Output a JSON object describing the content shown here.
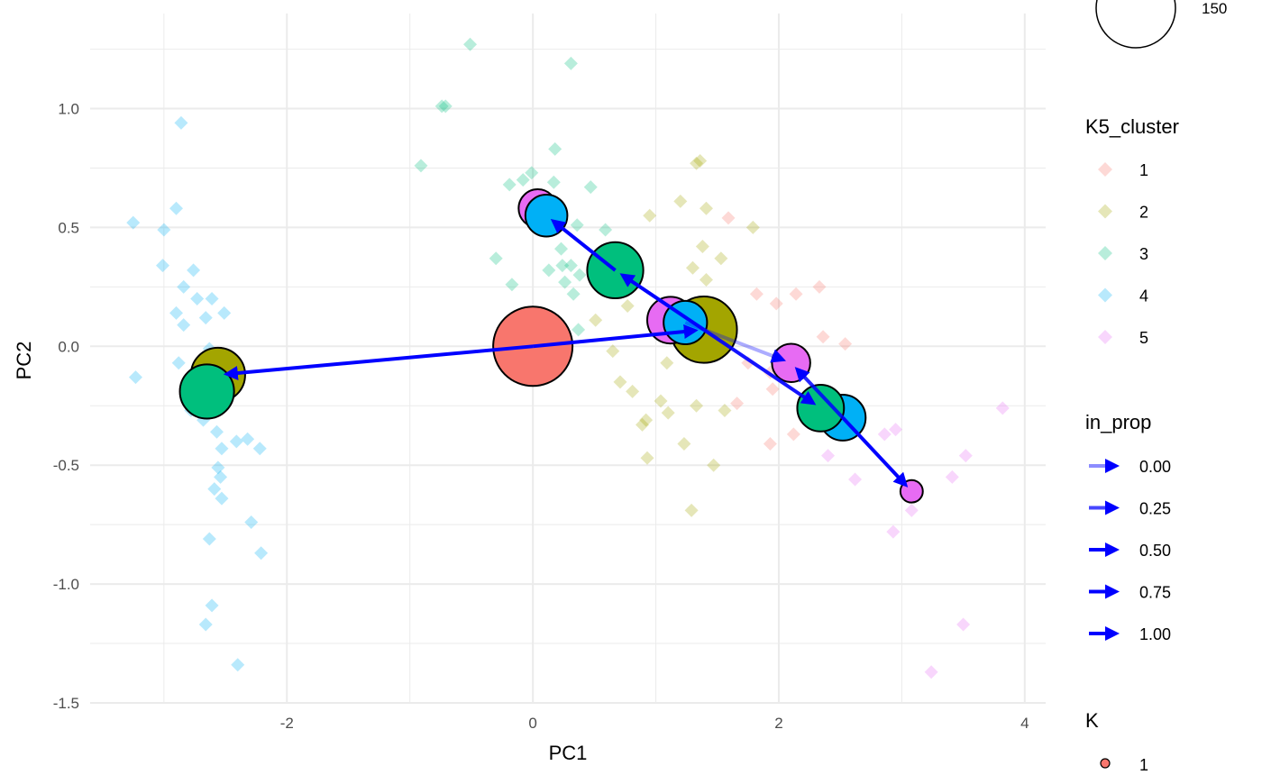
{
  "chart_data": {
    "type": "scatter",
    "xlabel": "PC1",
    "ylabel": "PC2",
    "xlim": [
      -3.6,
      4.17
    ],
    "ylim": [
      -1.5,
      1.4
    ],
    "x_ticks": [
      -2,
      0,
      2,
      4
    ],
    "y_ticks": [
      -1.5,
      -1.0,
      -0.5,
      0.0,
      0.5,
      1.0
    ],
    "x_tick_labels": [
      "-2",
      "0",
      "2",
      "4"
    ],
    "y_tick_labels": [
      "-1.5",
      "-1.0",
      "-0.5",
      "0.0",
      "0.5",
      "1.0"
    ],
    "grid": true,
    "legend_position": "right",
    "cluster_colors": {
      "1": "#F8766D",
      "2": "#A3A500",
      "3": "#00BF7D",
      "4": "#00B0F6",
      "5": "#E76BF3"
    },
    "arrow_color": "#0000FF",
    "points": [
      {
        "cluster": "4",
        "x": [
          -2.86,
          -3.25,
          -2.9,
          -3.0,
          -3.01,
          -2.76,
          -2.84,
          -2.73,
          -2.61,
          -2.9,
          -2.84,
          -2.66,
          -2.51,
          -2.88,
          -3.23,
          -2.63,
          -2.78,
          -2.68,
          -2.57,
          -2.53,
          -2.41,
          -2.32,
          -2.22,
          -2.56,
          -2.54,
          -2.59,
          -2.53,
          -2.29,
          -2.63,
          -2.21,
          -2.61,
          -2.66,
          -2.4
        ],
        "y": [
          0.94,
          0.52,
          0.58,
          0.49,
          0.34,
          0.32,
          0.25,
          0.2,
          0.2,
          0.14,
          0.09,
          0.12,
          0.14,
          -0.07,
          -0.13,
          -0.01,
          -0.27,
          -0.31,
          -0.36,
          -0.43,
          -0.4,
          -0.39,
          -0.43,
          -0.51,
          -0.55,
          -0.6,
          -0.64,
          -0.74,
          -0.81,
          -0.87,
          -1.09,
          -1.17,
          -1.34
        ]
      },
      {
        "cluster": "3",
        "x": [
          -0.51,
          0.31,
          -0.74,
          -0.71,
          -0.91,
          0.18,
          -0.01,
          -0.08,
          -0.19,
          0.17,
          0.47,
          0.36,
          0.59,
          0.23,
          0.24,
          0.31,
          0.13,
          0.26,
          0.33,
          -0.3,
          -0.17,
          0.37,
          0.38
        ],
        "y": [
          1.27,
          1.19,
          1.01,
          1.01,
          0.76,
          0.83,
          0.73,
          0.7,
          0.68,
          0.69,
          0.67,
          0.51,
          0.49,
          0.41,
          0.34,
          0.34,
          0.32,
          0.27,
          0.22,
          0.37,
          0.26,
          0.07,
          0.3
        ]
      },
      {
        "cluster": "2",
        "x": [
          1.33,
          1.36,
          1.2,
          0.95,
          1.41,
          1.79,
          1.53,
          1.38,
          1.3,
          1.41,
          0.51,
          0.77,
          0.65,
          1.09,
          0.71,
          0.81,
          1.04,
          1.1,
          1.33,
          1.56,
          0.92,
          0.89,
          1.23,
          0.93,
          1.47,
          1.29
        ],
        "y": [
          0.77,
          0.78,
          0.61,
          0.55,
          0.58,
          0.5,
          0.37,
          0.42,
          0.33,
          0.28,
          0.11,
          0.17,
          -0.02,
          -0.07,
          -0.15,
          -0.19,
          -0.23,
          -0.28,
          -0.25,
          -0.27,
          -0.31,
          -0.33,
          -0.41,
          -0.47,
          -0.5,
          -0.69
        ]
      },
      {
        "cluster": "1",
        "x": [
          1.59,
          1.82,
          1.98,
          2.14,
          2.33,
          2.36,
          2.54,
          1.66,
          1.93,
          1.95,
          1.93,
          2.12,
          1.75
        ],
        "y": [
          0.54,
          0.22,
          0.18,
          0.22,
          0.25,
          0.04,
          0.01,
          -0.24,
          -0.11,
          -0.18,
          -0.41,
          -0.37,
          -0.07
        ]
      },
      {
        "cluster": "5",
        "x": [
          3.82,
          2.86,
          2.95,
          2.4,
          2.62,
          3.08,
          3.52,
          3.41,
          2.93,
          3.5,
          3.24
        ],
        "y": [
          -0.26,
          -0.37,
          -0.35,
          -0.46,
          -0.56,
          -0.69,
          -0.46,
          -0.55,
          -0.78,
          -1.17,
          -1.37
        ]
      }
    ],
    "nodes": [
      {
        "K": 1,
        "cluster": "1",
        "x": 0.0,
        "y": 0.0,
        "size": 150
      },
      {
        "K": 2,
        "cluster": "2",
        "x": -2.56,
        "y": -0.12,
        "size": 70
      },
      {
        "K": 3,
        "cluster": "3",
        "x": -2.65,
        "y": -0.19,
        "size": 70
      },
      {
        "K": 2,
        "cluster": "2",
        "x": 1.39,
        "y": 0.07,
        "size": 105
      },
      {
        "K": 5,
        "cluster": "5",
        "x": 1.12,
        "y": 0.11,
        "size": 52
      },
      {
        "K": 4,
        "cluster": "4",
        "x": 1.24,
        "y": 0.1,
        "size": 45
      },
      {
        "K": 3,
        "cluster": "3",
        "x": 0.67,
        "y": 0.32,
        "size": 75
      },
      {
        "K": 5,
        "cluster": "5",
        "x": 0.04,
        "y": 0.58,
        "size": 35
      },
      {
        "K": 4,
        "cluster": "4",
        "x": 0.11,
        "y": 0.55,
        "size": 42
      },
      {
        "K": 5,
        "cluster": "5",
        "x": 2.1,
        "y": -0.07,
        "size": 35
      },
      {
        "K": 4,
        "cluster": "4",
        "x": 2.52,
        "y": -0.3,
        "size": 50
      },
      {
        "K": 3,
        "cluster": "3",
        "x": 2.34,
        "y": -0.26,
        "size": 52
      },
      {
        "K": 5,
        "cluster": "5",
        "x": 3.08,
        "y": -0.61,
        "size": 12
      }
    ],
    "edges": [
      {
        "from": [
          0.0,
          0.0
        ],
        "to": [
          -2.56,
          -0.12
        ],
        "in_prop": 1.0
      },
      {
        "from": [
          0.0,
          0.0
        ],
        "to": [
          1.39,
          0.07
        ],
        "in_prop": 1.0
      },
      {
        "from": [
          1.39,
          0.07
        ],
        "to": [
          0.67,
          0.32
        ],
        "in_prop": 1.0
      },
      {
        "from": [
          1.39,
          0.07
        ],
        "to": [
          2.34,
          -0.26
        ],
        "in_prop": 0.9
      },
      {
        "from": [
          1.24,
          0.1
        ],
        "to": [
          2.1,
          -0.07
        ],
        "in_prop": 0.1
      },
      {
        "from": [
          0.67,
          0.32
        ],
        "to": [
          0.11,
          0.55
        ],
        "in_prop": 1.0
      },
      {
        "from": [
          2.52,
          -0.3
        ],
        "to": [
          3.08,
          -0.61
        ],
        "in_prop": 1.0
      },
      {
        "from": [
          2.52,
          -0.3
        ],
        "to": [
          2.1,
          -0.07
        ],
        "in_prop": 0.8
      }
    ]
  },
  "legend": {
    "size_label": "150",
    "cluster_title": "K5_cluster",
    "cluster_items": [
      "1",
      "2",
      "3",
      "4",
      "5"
    ],
    "prop_title": "in_prop",
    "prop_items": [
      "0.00",
      "0.25",
      "0.50",
      "0.75",
      "1.00"
    ],
    "k_title": "K",
    "k_items": [
      "1"
    ]
  }
}
